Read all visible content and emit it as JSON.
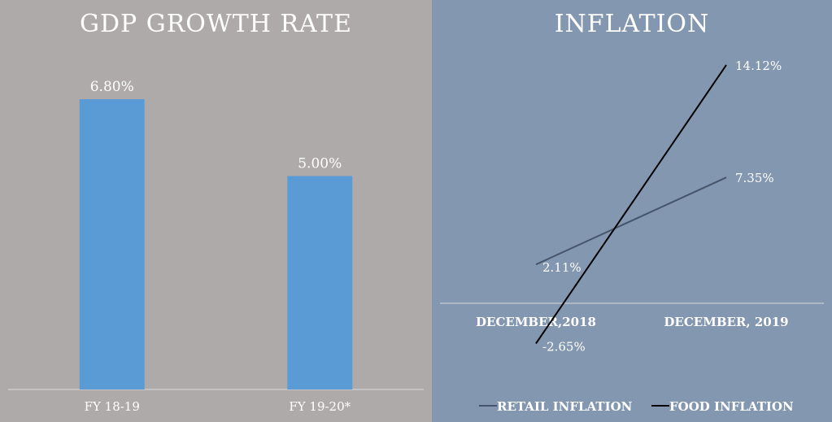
{
  "chart_data": [
    {
      "type": "bar",
      "title": "GDP GROWTH RATE",
      "categories": [
        "FY 18-19",
        "FY 19-20*"
      ],
      "values": [
        6.8,
        5.0
      ],
      "data_labels": [
        "6.80%",
        "5.00%"
      ],
      "ylim": [
        0,
        8
      ],
      "grid": false,
      "bar_color": "#5b9bd5"
    },
    {
      "type": "line",
      "title": "INFLATION",
      "categories": [
        "DECEMBER,2018",
        "DECEMBER, 2019"
      ],
      "ylim": [
        -4,
        15
      ],
      "grid": false,
      "legend_position": "bottom",
      "series": [
        {
          "name": "RETAIL INFLATION",
          "values": [
            2.11,
            7.35
          ],
          "data_labels": [
            "2.11%",
            "7.35%"
          ],
          "color": "#44546a"
        },
        {
          "name": "FOOD INFLATION",
          "values": [
            -2.65,
            14.12
          ],
          "data_labels": [
            "-2.65%",
            "14.12%"
          ],
          "color": "#000000"
        }
      ]
    }
  ]
}
